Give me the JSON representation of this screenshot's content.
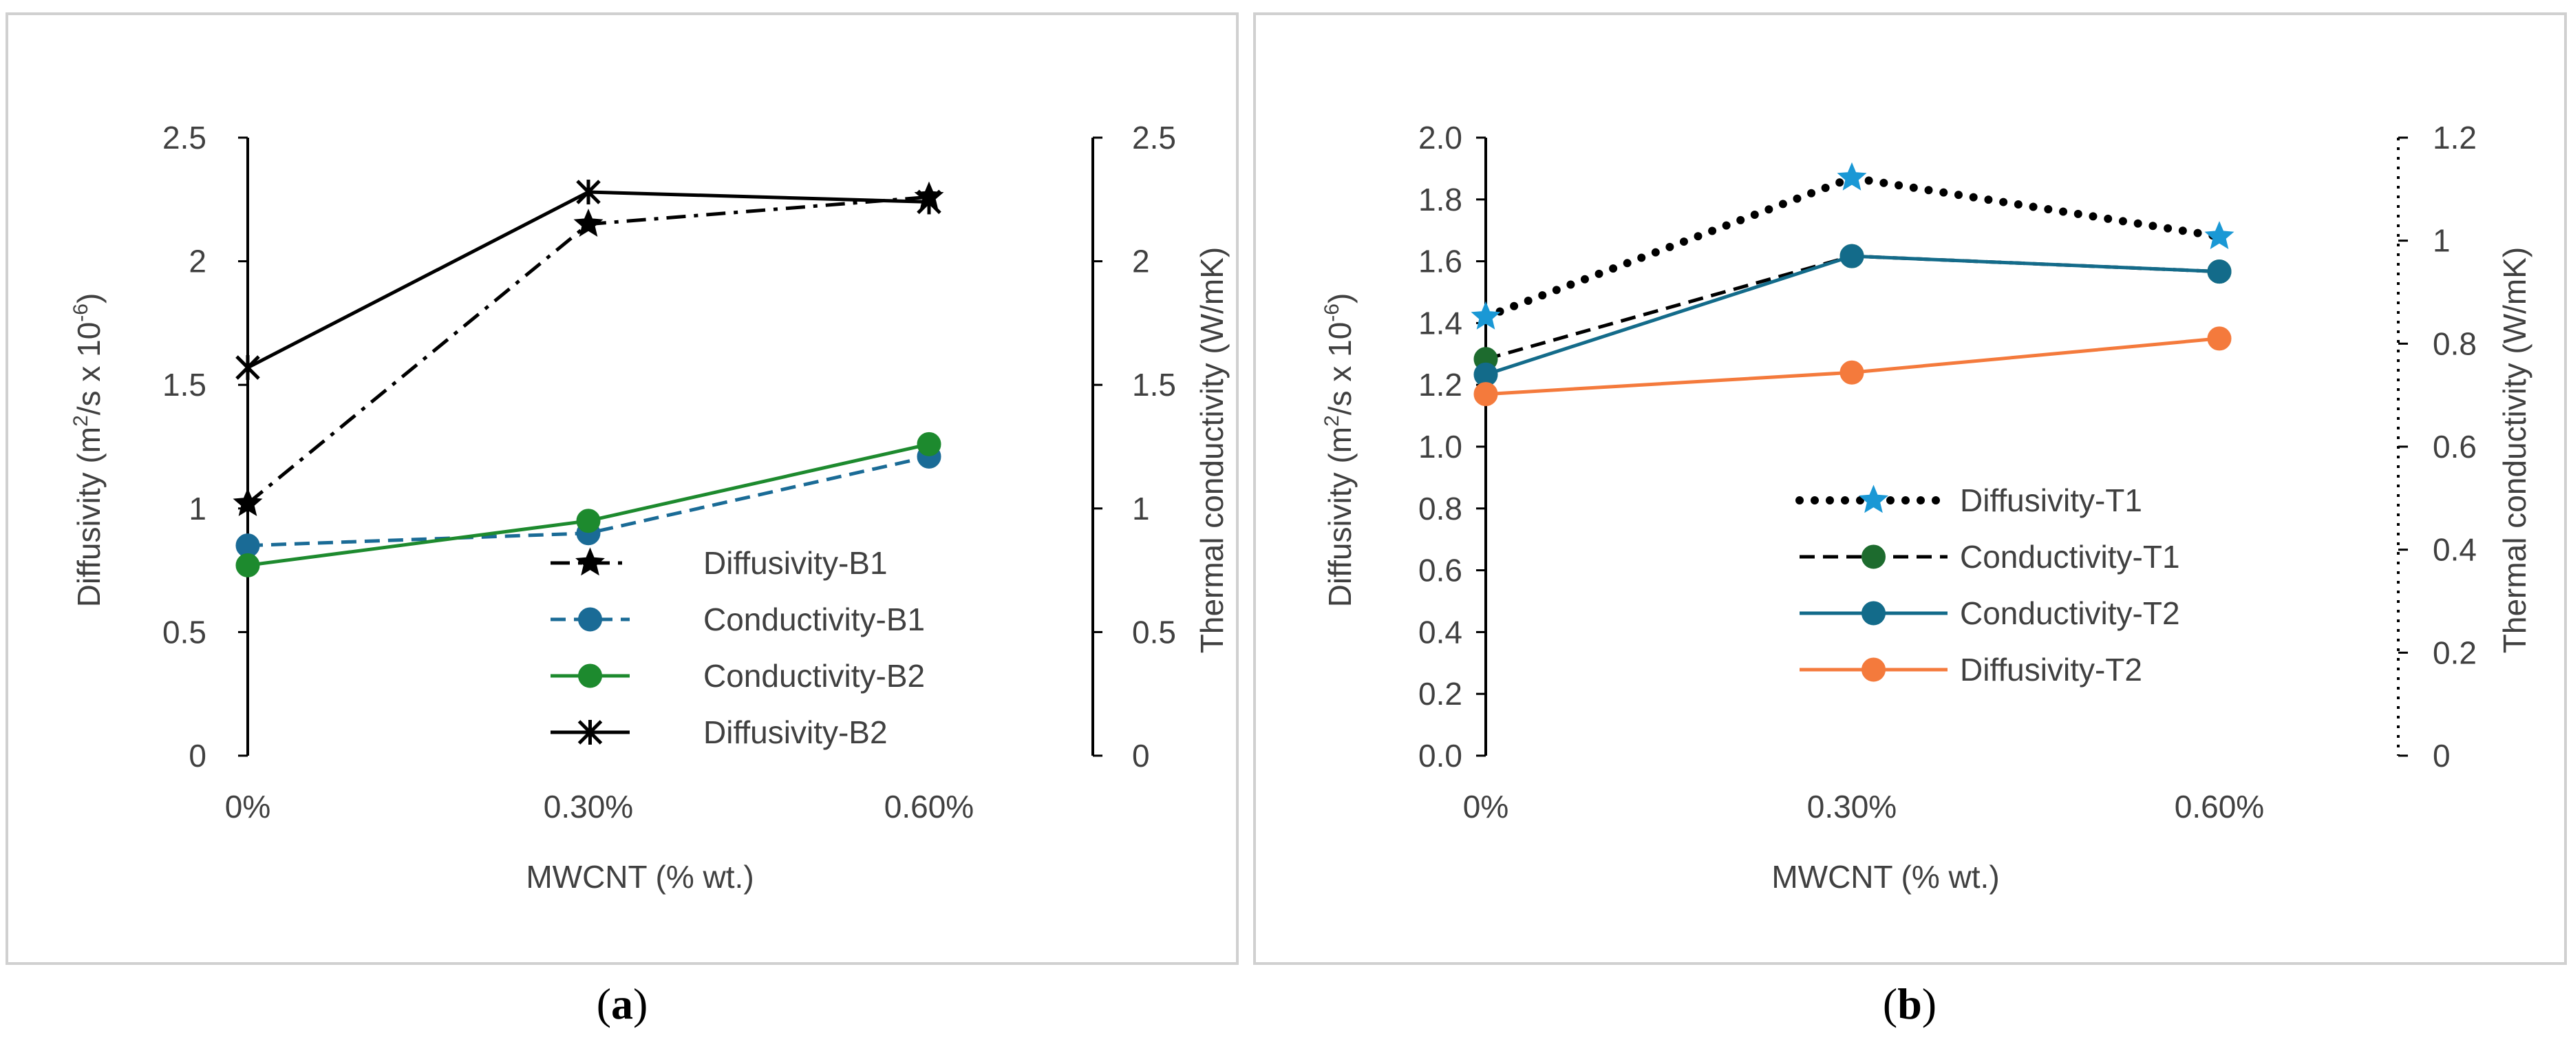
{
  "panels": {
    "a": {
      "caption_open": "(",
      "caption_letter": "a",
      "caption_close": ")"
    },
    "b": {
      "caption_open": "(",
      "caption_letter": "b",
      "caption_close": ")"
    }
  },
  "chart_data": [
    {
      "id": "a",
      "type": "line",
      "title": "",
      "xlabel": "MWCNT (% wt.)",
      "ylabel_left_pre": "Diffusivity (m",
      "ylabel_left_sup1": "2",
      "ylabel_left_mid": "/s x 10",
      "ylabel_left_sup2": "-6",
      "ylabel_left_post": ")",
      "ylabel_right": "Thermal conductivity (W/mK)",
      "categories": [
        "0%",
        "0.30%",
        "0.60%"
      ],
      "ylim_left": [
        0,
        2.5
      ],
      "ylim_right": [
        0,
        2.5
      ],
      "yticks_left": [
        "0",
        "0.5",
        "1",
        "1.5",
        "2",
        "2.5"
      ],
      "yticks_right": [
        "0",
        "0.5",
        "1",
        "1.5",
        "2",
        "2.5"
      ],
      "legend_position": "bottom-right inside",
      "series": [
        {
          "name": "Diffusivity-B1",
          "axis": "left",
          "values": [
            1.02,
            2.15,
            2.26
          ],
          "color": "#000000",
          "dash": "dashdot",
          "marker": "star"
        },
        {
          "name": "Conductivity-B1",
          "axis": "right",
          "values": [
            0.85,
            0.9,
            1.21
          ],
          "color": "#1a6b96",
          "dash": "dashed",
          "marker": "circle"
        },
        {
          "name": "Conductivity-B2",
          "axis": "right",
          "values": [
            0.77,
            0.95,
            1.26
          ],
          "color": "#1d8a2e",
          "dash": "solid",
          "marker": "circle"
        },
        {
          "name": "Diffusivity-B2",
          "axis": "left",
          "values": [
            1.57,
            2.28,
            2.24
          ],
          "color": "#000000",
          "dash": "solid",
          "marker": "asterisk"
        }
      ]
    },
    {
      "id": "b",
      "type": "line",
      "title": "",
      "xlabel": "MWCNT (% wt.)",
      "ylabel_left_pre": "Diffusivity (m",
      "ylabel_left_sup1": "2",
      "ylabel_left_mid": "/s x 10",
      "ylabel_left_sup2": "-6",
      "ylabel_left_post": ")",
      "ylabel_right": "Thermal conductivity (W/mK)",
      "categories": [
        "0%",
        "0.30%",
        "0.60%"
      ],
      "ylim_left": [
        0,
        2.0
      ],
      "ylim_right": [
        0,
        1.2
      ],
      "yticks_left": [
        "0.0",
        "0.2",
        "0.4",
        "0.6",
        "0.8",
        "1.0",
        "1.2",
        "1.4",
        "1.6",
        "1.8",
        "2.0"
      ],
      "yticks_right": [
        "0",
        "0.2",
        "0.4",
        "0.6",
        "0.8",
        "1",
        "1.2"
      ],
      "legend_position": "bottom-middle inside",
      "series": [
        {
          "name": "Diffusivity-T1",
          "axis": "left",
          "values": [
            1.42,
            1.87,
            1.68
          ],
          "color": "#1a98d5",
          "line_color": "#000000",
          "dash": "dotted",
          "marker": "star"
        },
        {
          "name": "Conductivity-T1",
          "axis": "right",
          "values": [
            0.77,
            0.97,
            0.94
          ],
          "color": "#1d6b2e",
          "line_color": "#000000",
          "dash": "dashed",
          "marker": "circle"
        },
        {
          "name": "Conductivity-T2",
          "axis": "right",
          "values": [
            0.74,
            0.97,
            0.94
          ],
          "color": "#136b8a",
          "line_color": "#136b8a",
          "dash": "solid",
          "marker": "circle"
        },
        {
          "name": "Diffusivity-T2",
          "axis": "left",
          "values": [
            1.17,
            1.24,
            1.35
          ],
          "color": "#f47a3c",
          "line_color": "#f47a3c",
          "dash": "solid",
          "marker": "circle"
        }
      ]
    }
  ]
}
